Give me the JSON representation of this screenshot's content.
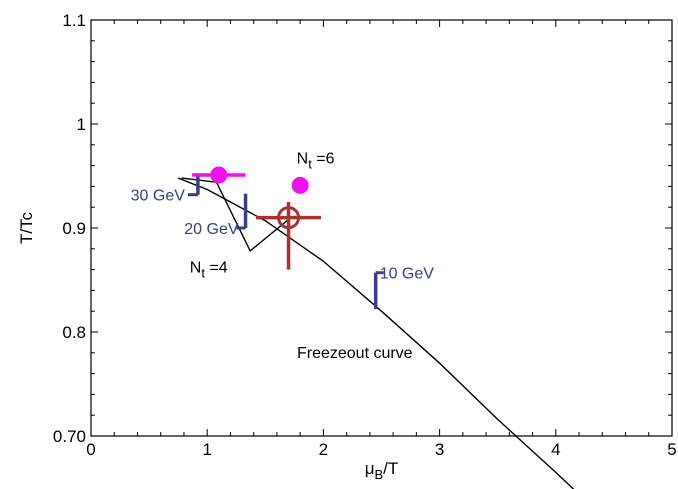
{
  "chart_data": {
    "type": "scatter",
    "xlabel_main": "μ",
    "xlabel_sub": "B",
    "xlabel_tail": "/T",
    "ylabel": "T/Tc",
    "xlim": [
      0,
      5
    ],
    "ylim": [
      0.7,
      1.1
    ],
    "x_ticks": [
      "0",
      "1",
      "2",
      "3",
      "4",
      "5"
    ],
    "y_ticks": [
      "0.70",
      "0.8",
      "0.9",
      "1",
      "1.1"
    ],
    "grid": false,
    "freezeout_curve": {
      "label": "Freezeout curve",
      "color": "#000000",
      "points": [
        [
          0.75,
          0.948
        ],
        [
          1.0,
          0.937
        ],
        [
          1.5,
          0.907
        ],
        [
          2.0,
          0.868
        ],
        [
          2.5,
          0.82
        ],
        [
          3.0,
          0.77
        ],
        [
          3.5,
          0.716
        ],
        [
          4.0,
          0.665
        ],
        [
          4.35,
          0.628
        ]
      ]
    },
    "nt4_line": {
      "label_main": "N",
      "label_sub": "t",
      "label_tail": " =4",
      "color": "#000000",
      "points": [
        [
          0.78,
          0.948
        ],
        [
          1.08,
          0.944
        ],
        [
          1.37,
          0.878
        ],
        [
          1.72,
          0.91
        ]
      ]
    },
    "energy_markers": [
      {
        "label": "30 GeV",
        "x": 0.92,
        "y1": 0.932,
        "y2": 0.952,
        "color": "#3a3d8c"
      },
      {
        "label": "20 GeV",
        "x": 1.33,
        "y1": 0.9,
        "y2": 0.933,
        "color": "#3a3d8c"
      },
      {
        "label": "10 GeV",
        "x": 2.45,
        "y1": 0.822,
        "y2": 0.857,
        "color": "#3a3d8c"
      }
    ],
    "points": [
      {
        "series": "Nt=4 (open circle)",
        "x": 1.7,
        "y": 0.91,
        "xerr": 0.28,
        "yerr_up": 0.015,
        "yerr_down": 0.05,
        "color": "#a83232",
        "marker": "open-circle"
      },
      {
        "series": "Nt=6",
        "x": 1.1,
        "y": 0.951,
        "xerr": 0.23,
        "yerr_up": 0.005,
        "yerr_down": 0.005,
        "color": "#ee11ee",
        "marker": "filled-diamond"
      },
      {
        "series": "Nt=6",
        "x": 1.8,
        "y": 0.941,
        "xerr": 0.05,
        "yerr_up": 0.005,
        "yerr_down": 0.005,
        "color": "#ee11ee",
        "marker": "filled-diamond"
      }
    ],
    "annotations": {
      "nt6_main": "N",
      "nt6_sub": "t",
      "nt6_tail": " =6"
    }
  }
}
